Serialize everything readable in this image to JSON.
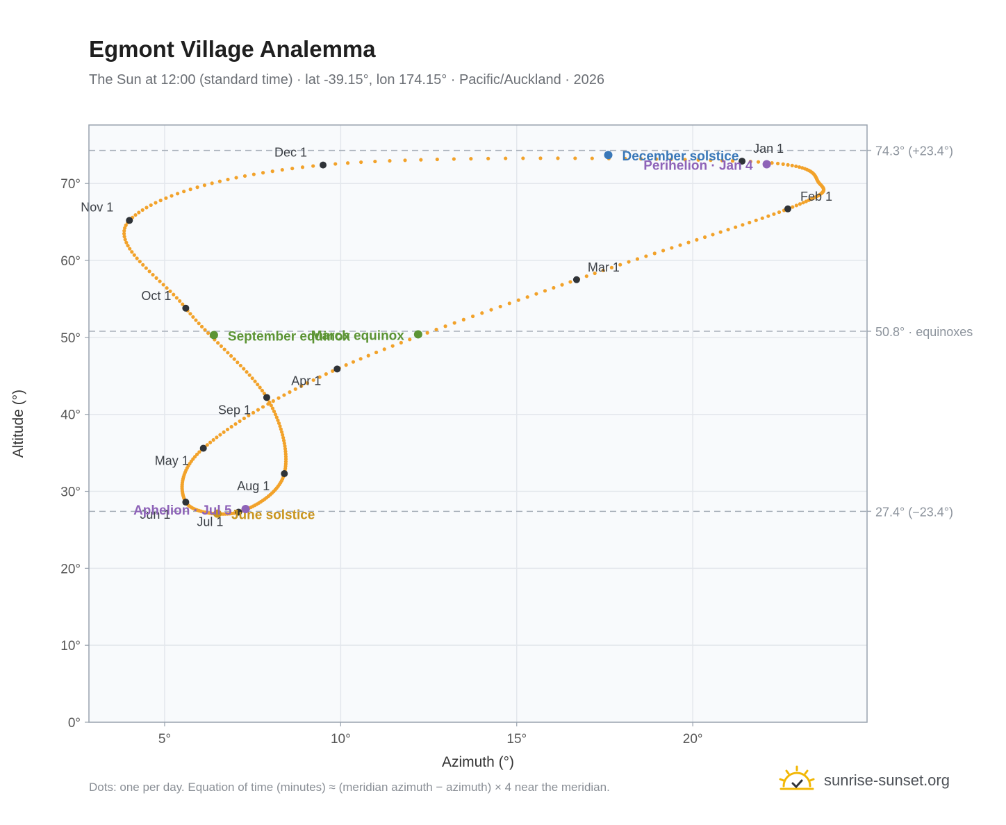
{
  "header": {
    "title": "Egmont Village Analemma",
    "subtitle": "The Sun at 12:00 (standard time) · lat -39.15°, lon 174.15° · Pacific/Auckland · 2026"
  },
  "footer": {
    "note": "Dots: one per day. Equation of time (minutes) ≈ (meridian azimuth − azimuth) × 4 near the meridian.",
    "brand": "sunrise-sunset.org"
  },
  "chart_data": {
    "type": "scatter",
    "title": "Egmont Village Analemma",
    "xlabel": "Azimuth (°)",
    "ylabel": "Altitude (°)",
    "xlim": [
      2.85,
      24.95
    ],
    "ylim": [
      0,
      77.6
    ],
    "x_ticks": [
      {
        "value": 5,
        "label": "5°"
      },
      {
        "value": 10,
        "label": "10°"
      },
      {
        "value": 15,
        "label": "15°"
      },
      {
        "value": 20,
        "label": "20°"
      }
    ],
    "y_ticks": [
      {
        "value": 0,
        "label": "0°"
      },
      {
        "value": 10,
        "label": "10°"
      },
      {
        "value": 20,
        "label": "20°"
      },
      {
        "value": 30,
        "label": "30°"
      },
      {
        "value": 40,
        "label": "40°"
      },
      {
        "value": 50,
        "label": "50°"
      },
      {
        "value": 60,
        "label": "60°"
      },
      {
        "value": 70,
        "label": "70°"
      }
    ],
    "grid": true,
    "reference_lines": [
      {
        "y": 74.3,
        "label": "74.3° (+23.4°)"
      },
      {
        "y": 50.8,
        "label": "50.8° · equinoxes"
      },
      {
        "y": 27.4,
        "label": "27.4° (−23.4°)"
      }
    ],
    "daily_path": [
      {
        "x": 21.4,
        "y": 72.9
      },
      {
        "x": 23.6,
        "y": 70.0
      },
      {
        "x": 22.7,
        "y": 66.7
      },
      {
        "x": 16.7,
        "y": 57.5
      },
      {
        "x": 9.9,
        "y": 45.9
      },
      {
        "x": 6.1,
        "y": 35.6
      },
      {
        "x": 5.6,
        "y": 28.6
      },
      {
        "x": 7.1,
        "y": 27.3
      },
      {
        "x": 8.4,
        "y": 32.3
      },
      {
        "x": 7.9,
        "y": 42.2
      },
      {
        "x": 5.6,
        "y": 53.8
      },
      {
        "x": 4.0,
        "y": 65.2
      },
      {
        "x": 9.5,
        "y": 72.4
      },
      {
        "x": 21.4,
        "y": 72.9
      }
    ],
    "month_markers": [
      {
        "label": "Jan 1",
        "x": 21.4,
        "y": 72.9
      },
      {
        "label": "Feb 1",
        "x": 22.7,
        "y": 66.7
      },
      {
        "label": "Mar 1",
        "x": 16.7,
        "y": 57.5
      },
      {
        "label": "Apr 1",
        "x": 9.9,
        "y": 45.9
      },
      {
        "label": "May 1",
        "x": 6.1,
        "y": 35.6
      },
      {
        "label": "Jun 1",
        "x": 5.6,
        "y": 28.6
      },
      {
        "label": "Jul 1",
        "x": 7.1,
        "y": 27.3
      },
      {
        "label": "Aug 1",
        "x": 8.4,
        "y": 32.3
      },
      {
        "label": "Sep 1",
        "x": 7.9,
        "y": 42.2
      },
      {
        "label": "Oct 1",
        "x": 5.6,
        "y": 53.8
      },
      {
        "label": "Nov 1",
        "x": 4.0,
        "y": 65.2
      },
      {
        "label": "Dec 1",
        "x": 9.5,
        "y": 72.4
      }
    ],
    "events": [
      {
        "label": "December solstice",
        "x": 17.6,
        "y": 73.7,
        "color": "#3a78b8"
      },
      {
        "label": "Perihelion · Jan 4",
        "x": 22.1,
        "y": 72.5,
        "color": "#8e63b8"
      },
      {
        "label": "March equinox",
        "x": 12.2,
        "y": 50.4,
        "color": "#5c9434"
      },
      {
        "label": "September equinox",
        "x": 6.4,
        "y": 50.3,
        "color": "#5c9434"
      },
      {
        "label": "June solstice",
        "x": 6.5,
        "y": 27.1,
        "color": "#c9941d"
      },
      {
        "label": "Aphelion · Jul 5",
        "x": 7.3,
        "y": 27.7,
        "color": "#8e63b8"
      }
    ],
    "colors": {
      "path": "#f2a22a",
      "month_marker": "#2f3338",
      "reference_line": "#a8b0ba",
      "grid": "#e3e7ec",
      "plot_background": "#f8fafc",
      "frame": "#98a2ae"
    }
  }
}
